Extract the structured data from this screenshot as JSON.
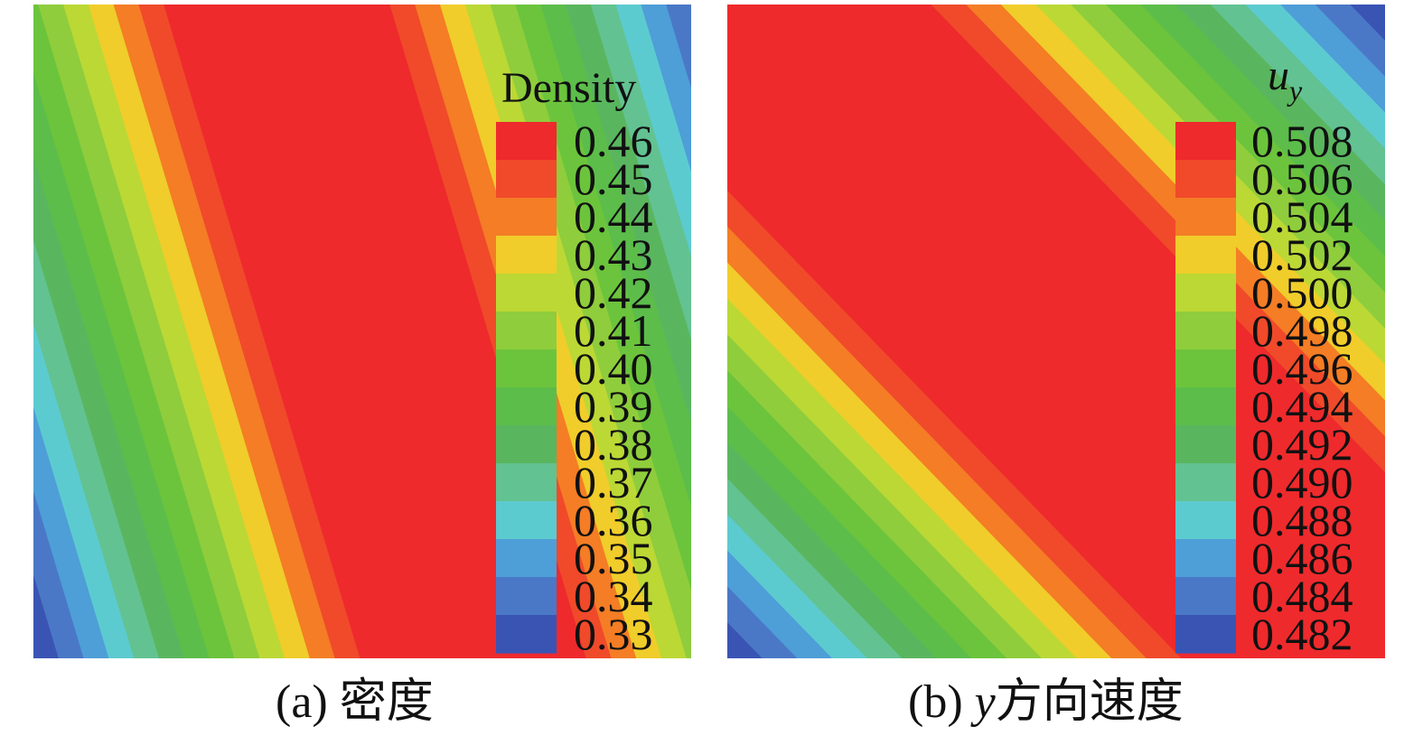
{
  "chart_data": [
    {
      "type": "heatmap",
      "title": "Density",
      "caption": "(a) 密度",
      "legend_placement": "right-inside",
      "levels": [
        "0.46",
        "0.45",
        "0.44",
        "0.43",
        "0.42",
        "0.41",
        "0.40",
        "0.39",
        "0.38",
        "0.37",
        "0.36",
        "0.35",
        "0.34",
        "0.33"
      ],
      "level_colors": [
        "#ee2a2c",
        "#f04a2a",
        "#f47d25",
        "#f0cd2a",
        "#bcd835",
        "#8fcd3c",
        "#6cc43c",
        "#5cbd4a",
        "#5ab65e",
        "#62c292",
        "#5ccbd0",
        "#4e9ed8",
        "#4a78c6",
        "#3a54b4"
      ],
      "stripe_tilt": 0.3,
      "stripe_levels": [
        0.33,
        0.34,
        0.35,
        0.36,
        0.37,
        0.38,
        0.39,
        0.4,
        0.41,
        0.42,
        0.43,
        0.44,
        0.45,
        0.46,
        0.46,
        0.46,
        0.46,
        0.46,
        0.46,
        0.46,
        0.46,
        0.46,
        0.45,
        0.44,
        0.43,
        0.42,
        0.41,
        0.4,
        0.39,
        0.38,
        0.37,
        0.36,
        0.35,
        0.34
      ]
    },
    {
      "type": "heatmap",
      "title": "u_y",
      "caption": "(b) y方向速度",
      "legend_placement": "right-inside",
      "levels": [
        "0.508",
        "0.506",
        "0.504",
        "0.502",
        "0.500",
        "0.498",
        "0.496",
        "0.494",
        "0.492",
        "0.490",
        "0.488",
        "0.486",
        "0.484",
        "0.482"
      ],
      "level_colors": [
        "#ee2a2c",
        "#f04a2a",
        "#f47d25",
        "#f0cd2a",
        "#bcd835",
        "#8fcd3c",
        "#6cc43c",
        "#5cbd4a",
        "#5ab65e",
        "#62c292",
        "#5ccbd0",
        "#4e9ed8",
        "#4a78c6",
        "#3a54b4"
      ],
      "stripe_tilt": 0.97,
      "stripe_levels": [
        0.482,
        0.484,
        0.486,
        0.488,
        0.49,
        0.492,
        0.494,
        0.496,
        0.498,
        0.5,
        0.502,
        0.504,
        0.506,
        0.508,
        0.508,
        0.508,
        0.508,
        0.508,
        0.508,
        0.508,
        0.508,
        0.508,
        0.508,
        0.508,
        0.506,
        0.504,
        0.502,
        0.5,
        0.498,
        0.496,
        0.494,
        0.492,
        0.49,
        0.488,
        0.486,
        0.484,
        0.482
      ]
    }
  ],
  "captions": {
    "a_label": "(a) 密度",
    "b_prefix": "(b) ",
    "b_var": "y",
    "b_suffix": "方向速度"
  }
}
